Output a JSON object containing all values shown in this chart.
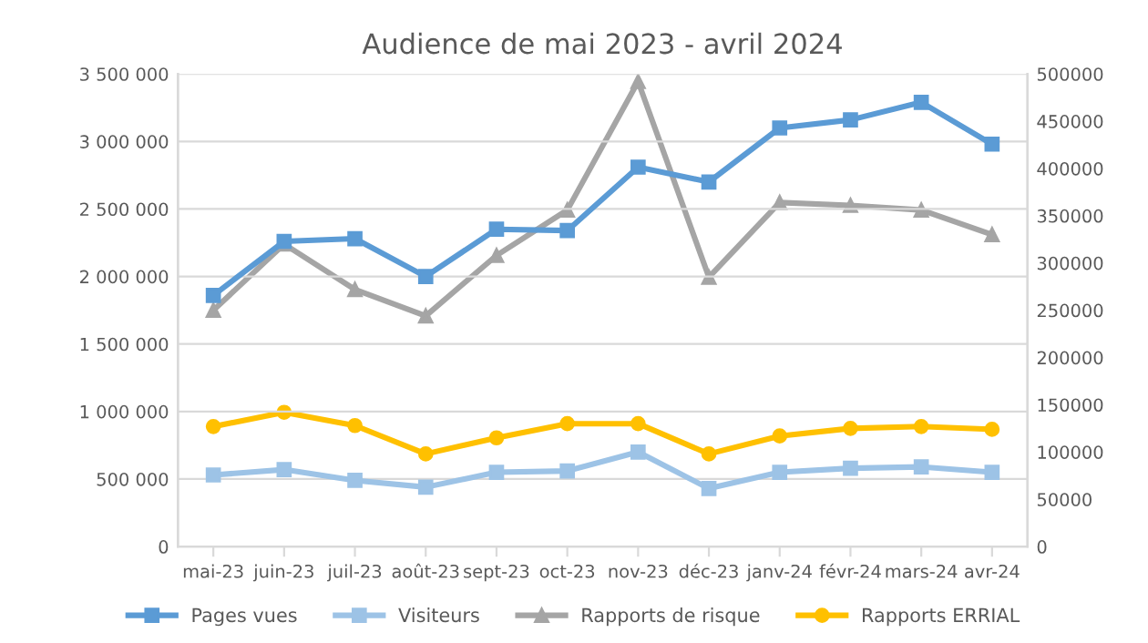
{
  "chart_data": {
    "type": "line",
    "title": "Audience de mai 2023 - avril 2024",
    "categories": [
      "mai-23",
      "juin-23",
      "juil-23",
      "août-23",
      "sept-23",
      "oct-23",
      "nov-23",
      "déc-23",
      "janv-24",
      "févr-24",
      "mars-24",
      "avr-24"
    ],
    "series": [
      {
        "name": "Pages vues",
        "color": "#5b9bd5",
        "marker": "square",
        "values": [
          1860000,
          2260000,
          2280000,
          2000000,
          2350000,
          2340000,
          2810000,
          2700000,
          3100000,
          3160000,
          3290000,
          2980000
        ]
      },
      {
        "name": "Visiteurs",
        "color": "#9dc3e6",
        "marker": "square",
        "values": [
          530000,
          570000,
          490000,
          440000,
          550000,
          560000,
          700000,
          430000,
          550000,
          580000,
          590000,
          550000
        ]
      },
      {
        "name": "Rapports de risque",
        "color": "#a5a5a5",
        "marker": "triangle",
        "axis": "y2",
        "values": [
          250000,
          320000,
          272000,
          244000,
          308000,
          356000,
          492000,
          285000,
          364000,
          361000,
          356000,
          330000
        ]
      },
      {
        "name": "Rapports ERRIAL",
        "color": "#ffc000",
        "marker": "circle",
        "axis": "y2",
        "values": [
          127000,
          142000,
          128000,
          98000,
          115000,
          130000,
          130000,
          98000,
          117000,
          125000,
          127000,
          124000
        ]
      }
    ],
    "ylim": [
      0,
      3500000
    ],
    "yticks": [
      0,
      {
        "value": 500000,
        "label": "500 000"
      },
      {
        "value": 1000000,
        "label": "1 000 000"
      },
      {
        "value": 1500000,
        "label": "1 500 000"
      },
      {
        "value": 2000000,
        "label": "2 000 000"
      },
      {
        "value": 2500000,
        "label": "2 500 000"
      },
      {
        "value": 3000000,
        "label": "3 000 000"
      },
      {
        "value": 3500000,
        "label": "3 500 000"
      }
    ],
    "y2lim": [
      0,
      500000
    ],
    "y2ticks": [
      0,
      50000,
      100000,
      150000,
      200000,
      250000,
      300000,
      350000,
      400000,
      450000,
      500000
    ],
    "grid": "y",
    "legend": "bottom",
    "line_style": "solid"
  }
}
